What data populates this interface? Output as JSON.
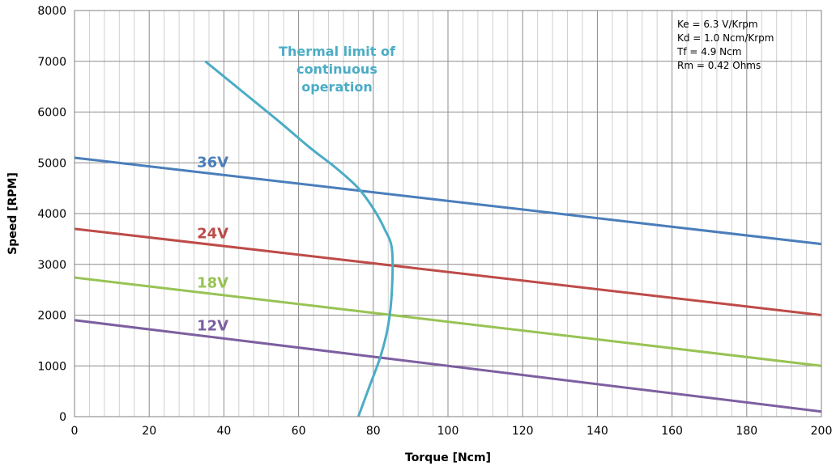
{
  "chart_data": {
    "type": "line",
    "xlabel": "Torque [Ncm]",
    "ylabel": "Speed [RPM]",
    "xlim": [
      0,
      200
    ],
    "ylim": [
      0,
      8000
    ],
    "x_ticks": [
      0,
      20,
      40,
      60,
      80,
      100,
      120,
      140,
      160,
      180,
      200
    ],
    "y_ticks": [
      0,
      1000,
      2000,
      3000,
      4000,
      5000,
      6000,
      7000,
      8000
    ],
    "grid": true,
    "series": [
      {
        "name": "36V",
        "color": "#4a7ebb",
        "x": [
          0,
          200
        ],
        "y": [
          5100,
          3400
        ]
      },
      {
        "name": "24V",
        "color": "#be4b48",
        "x": [
          0,
          200
        ],
        "y": [
          3700,
          2000
        ]
      },
      {
        "name": "18V",
        "color": "#98c354",
        "x": [
          0,
          200
        ],
        "y": [
          2740,
          1000
        ]
      },
      {
        "name": "12V",
        "color": "#7d5fa0",
        "x": [
          0,
          200
        ],
        "y": [
          1900,
          100
        ]
      }
    ],
    "thermal_limit": {
      "name": "Thermal limit of continuous operation",
      "label_lines": [
        "Thermal limit of",
        "continuous",
        "operation"
      ],
      "color": "#4bacc6",
      "x": [
        35,
        45,
        55,
        63,
        70,
        76,
        80,
        83,
        85,
        85,
        84,
        82,
        79,
        76
      ],
      "y": [
        7000,
        6400,
        5800,
        5300,
        4900,
        4500,
        4100,
        3700,
        3300,
        2500,
        1800,
        1200,
        600,
        0
      ]
    },
    "annotations": [
      "Ke = 6.3 V/Krpm",
      "Kd = 1.0 Ncm/Krpm",
      "Tf = 4.9 Ncm",
      "Rm = 0.42 Ohms"
    ]
  }
}
